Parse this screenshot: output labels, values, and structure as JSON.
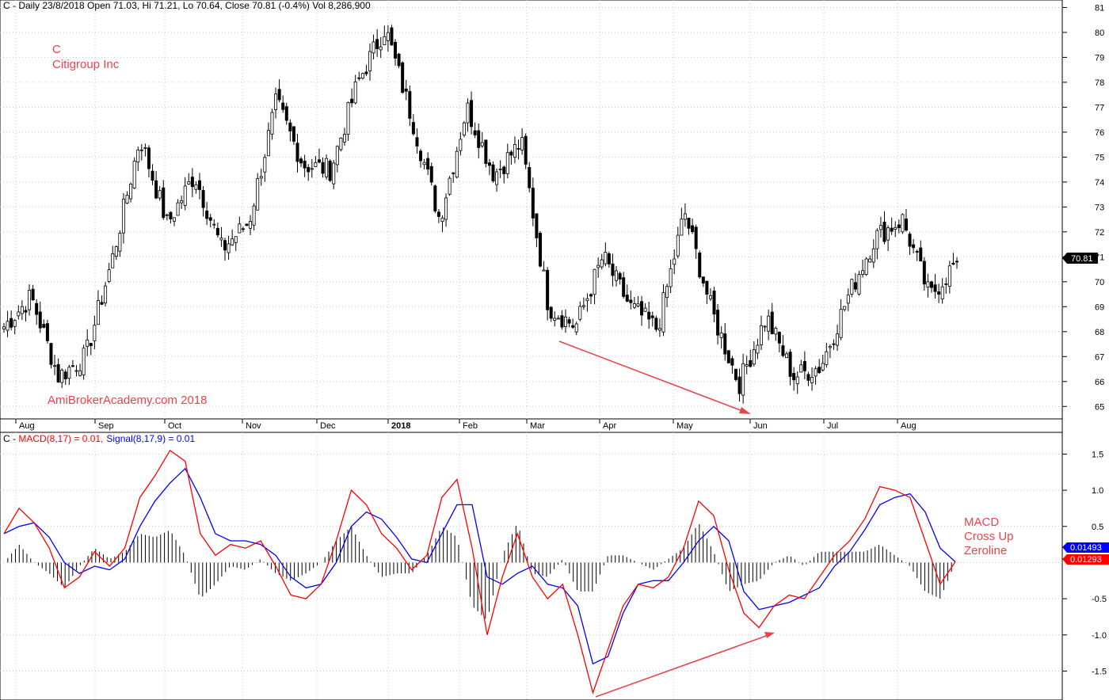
{
  "header": {
    "price_info": "C - Daily 23/8/2018 Open 71.03, Hi 71.21, Lo 70.64, Close 70.81 (-0.4%) Vol 8,286,900",
    "macd_prefix": "C - ",
    "macd_label": "MACD(8,17) = 0.01,",
    "signal_label": "Signal(8,17,9) = 0.01"
  },
  "annotations": {
    "ticker": "C",
    "company": "Citigroup Inc",
    "watermark": "AmiBrokerAcademy.com  2018",
    "macd_note_1": "MACD",
    "macd_note_2": "Cross Up",
    "macd_note_3": "Zeroline"
  },
  "badges": {
    "last_price": "70.81",
    "signal_value": "0.01493",
    "macd_value": "0.01293"
  },
  "colors": {
    "macd_line": "#ff0000",
    "signal_line": "#0000ff",
    "annotation": "#e8454a",
    "candle": "#000000"
  },
  "chart_data": [
    {
      "type": "candlestick",
      "title": "C - Daily 23/8/2018",
      "x_labels": [
        "Aug",
        "Sep",
        "Oct",
        "Nov",
        "Dec",
        "2018",
        "Feb",
        "Mar",
        "Apr",
        "May",
        "Jun",
        "Jul",
        "Aug"
      ],
      "ylim": [
        64.5,
        81.3
      ],
      "y_ticks": [
        65,
        66,
        67,
        68,
        69,
        70,
        71,
        72,
        73,
        74,
        75,
        76,
        77,
        78,
        79,
        80,
        81
      ],
      "last_close": 70.81,
      "grid": true,
      "close_keypoints": [
        {
          "date": "Aug 2017",
          "close": 68.2
        },
        {
          "date": "early Aug 2017",
          "close": 69.4
        },
        {
          "date": "late Aug 2017",
          "close": 66.2
        },
        {
          "date": "mid Sep 2017",
          "close": 67.0
        },
        {
          "date": "late Sep 2017",
          "close": 71.0
        },
        {
          "date": "early Oct 2017",
          "close": 75.8
        },
        {
          "date": "mid Oct 2017",
          "close": 72.3
        },
        {
          "date": "late Oct 2017",
          "close": 74.3
        },
        {
          "date": "mid Nov 2017",
          "close": 71.3
        },
        {
          "date": "late Nov 2017",
          "close": 72.4
        },
        {
          "date": "early Dec 2017",
          "close": 77.2
        },
        {
          "date": "mid Dec 2017",
          "close": 74.7
        },
        {
          "date": "late Dec 2017",
          "close": 74.5
        },
        {
          "date": "mid Jan 2018",
          "close": 78.0
        },
        {
          "date": "late Jan 2018",
          "close": 80.2
        },
        {
          "date": "early Feb 2018",
          "close": 76.5
        },
        {
          "date": "mid Feb 2018",
          "close": 72.5
        },
        {
          "date": "late Feb 2018",
          "close": 77.0
        },
        {
          "date": "early Mar 2018",
          "close": 74.3
        },
        {
          "date": "mid Mar 2018",
          "close": 75.6
        },
        {
          "date": "late Mar 2018",
          "close": 69.0
        },
        {
          "date": "early Apr 2018",
          "close": 68.2
        },
        {
          "date": "mid Apr 2018",
          "close": 71.0
        },
        {
          "date": "late Apr 2018",
          "close": 69.0
        },
        {
          "date": "early May 2018",
          "close": 68.1
        },
        {
          "date": "mid May 2018",
          "close": 72.8
        },
        {
          "date": "late May 2018",
          "close": 68.8
        },
        {
          "date": "early Jun 2018",
          "close": 65.9
        },
        {
          "date": "mid Jun 2018",
          "close": 68.6
        },
        {
          "date": "late Jun 2018",
          "close": 66.2
        },
        {
          "date": "early Jul 2018",
          "close": 66.6
        },
        {
          "date": "mid Jul 2018",
          "close": 69.4
        },
        {
          "date": "late Jul 2018",
          "close": 71.8
        },
        {
          "date": "early Aug 2018",
          "close": 72.5
        },
        {
          "date": "mid Aug 2018",
          "close": 69.4
        },
        {
          "date": "23 Aug 2018",
          "close": 70.81
        }
      ],
      "trend_arrow": {
        "from": {
          "date": "late Mar 2018",
          "price": 67.4
        },
        "to": {
          "date": "early Jun 2018",
          "price": 64.8
        }
      }
    },
    {
      "type": "line",
      "title": "MACD(8,17) = 0.01, Signal(8,17,9) = 0.01",
      "ylim": [
        -1.9,
        1.8
      ],
      "y_ticks": [
        -1.5,
        -1.0,
        -0.5,
        0.5,
        1.0,
        1.5
      ],
      "series": [
        {
          "name": "MACD(8,17)",
          "color": "#ff0000",
          "values": [
            0.4,
            0.75,
            0.55,
            0.2,
            -0.35,
            -0.2,
            0.15,
            -0.05,
            0.2,
            0.9,
            1.2,
            1.55,
            1.4,
            0.4,
            0.1,
            0.25,
            0.2,
            0.3,
            -0.05,
            -0.45,
            -0.5,
            -0.3,
            0.3,
            1.0,
            0.8,
            0.4,
            0.2,
            -0.1,
            0.1,
            0.9,
            1.15,
            0.2,
            -1.0,
            -0.2,
            0.4,
            -0.2,
            -0.5,
            -0.3,
            -1.0,
            -1.8,
            -1.2,
            -0.6,
            -0.3,
            -0.35,
            -0.2,
            0.2,
            0.85,
            0.65,
            -0.1,
            -0.7,
            -0.9,
            -0.6,
            -0.45,
            -0.5,
            -0.2,
            0.1,
            0.3,
            0.6,
            1.05,
            1.0,
            0.9,
            0.3,
            -0.3,
            0.01
          ]
        },
        {
          "name": "Signal(8,17,9)",
          "color": "#0000ff",
          "values": [
            0.4,
            0.5,
            0.55,
            0.35,
            0.0,
            -0.15,
            -0.05,
            -0.1,
            0.05,
            0.5,
            0.85,
            1.1,
            1.3,
            0.9,
            0.4,
            0.3,
            0.3,
            0.25,
            0.1,
            -0.2,
            -0.35,
            -0.3,
            0.0,
            0.5,
            0.7,
            0.6,
            0.35,
            0.05,
            0.0,
            0.4,
            0.8,
            0.8,
            -0.2,
            -0.3,
            -0.15,
            -0.05,
            -0.3,
            -0.35,
            -0.6,
            -1.4,
            -1.3,
            -0.7,
            -0.3,
            -0.25,
            -0.25,
            0.0,
            0.3,
            0.5,
            0.3,
            -0.4,
            -0.65,
            -0.6,
            -0.55,
            -0.45,
            -0.35,
            -0.05,
            0.15,
            0.45,
            0.8,
            0.9,
            0.95,
            0.7,
            0.2,
            0.01
          ]
        }
      ],
      "histogram_note": "black bars show MACD minus Signal, scaled about the zero line"
    }
  ]
}
